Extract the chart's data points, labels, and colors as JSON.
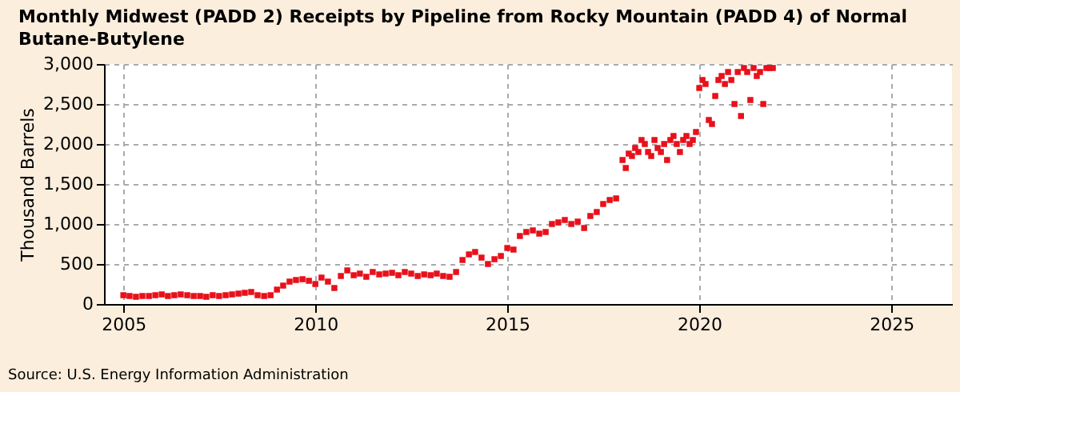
{
  "chart_data": {
    "type": "scatter",
    "title": "Monthly Midwest (PADD 2) Receipts by Pipeline from Rocky Mountain (PADD 4) of Normal Butane-Butylene",
    "ylabel": "Thousand Barrels",
    "annotations": [
      "Source: U.S. Energy Information Administration"
    ],
    "x": [
      "2005-01",
      "2005-03",
      "2005-05",
      "2005-07",
      "2005-09",
      "2005-11",
      "2006-01",
      "2006-03",
      "2006-05",
      "2006-07",
      "2006-09",
      "2006-11",
      "2007-01",
      "2007-03",
      "2007-05",
      "2007-07",
      "2007-09",
      "2007-11",
      "2008-01",
      "2008-03",
      "2008-05",
      "2008-07",
      "2008-09",
      "2008-11",
      "2009-01",
      "2009-03",
      "2009-05",
      "2009-07",
      "2009-09",
      "2009-11",
      "2010-01",
      "2010-03",
      "2010-05",
      "2010-07",
      "2010-09",
      "2010-11",
      "2011-01",
      "2011-03",
      "2011-05",
      "2011-07",
      "2011-09",
      "2011-11",
      "2012-01",
      "2012-03",
      "2012-05",
      "2012-07",
      "2012-09",
      "2012-11",
      "2013-01",
      "2013-03",
      "2013-05",
      "2013-07",
      "2013-09",
      "2013-11",
      "2014-01",
      "2014-03",
      "2014-05",
      "2014-07",
      "2014-09",
      "2014-11",
      "2015-01",
      "2015-03",
      "2015-05",
      "2015-07",
      "2015-09",
      "2015-11",
      "2016-01",
      "2016-03",
      "2016-05",
      "2016-07",
      "2016-09",
      "2016-11",
      "2017-01",
      "2017-03",
      "2017-05",
      "2017-07",
      "2017-09",
      "2017-11",
      "2018-01",
      "2018-02",
      "2018-03",
      "2018-04",
      "2018-05",
      "2018-06",
      "2018-07",
      "2018-08",
      "2018-09",
      "2018-10",
      "2018-11",
      "2018-12",
      "2019-01",
      "2019-02",
      "2019-03",
      "2019-04",
      "2019-05",
      "2019-06",
      "2019-07",
      "2019-08",
      "2019-09",
      "2019-10",
      "2019-11",
      "2019-12",
      "2020-01",
      "2020-02",
      "2020-03",
      "2020-04",
      "2020-05",
      "2020-06",
      "2020-07",
      "2020-08",
      "2020-09",
      "2020-10",
      "2020-11",
      "2020-12",
      "2021-01",
      "2021-02",
      "2021-03",
      "2021-04",
      "2021-05",
      "2021-06",
      "2021-07",
      "2021-08",
      "2021-09",
      "2021-10",
      "2021-11",
      "2021-12"
    ],
    "series": [
      {
        "color": "#e8101a",
        "values": [
          110,
          100,
          90,
          100,
          100,
          110,
          120,
          100,
          110,
          120,
          110,
          100,
          100,
          90,
          110,
          100,
          110,
          120,
          130,
          140,
          150,
          110,
          100,
          110,
          180,
          230,
          280,
          300,
          310,
          290,
          250,
          330,
          280,
          200,
          350,
          420,
          360,
          380,
          340,
          400,
          370,
          380,
          390,
          360,
          400,
          380,
          350,
          370,
          360,
          380,
          350,
          340,
          400,
          550,
          620,
          650,
          580,
          500,
          560,
          600,
          700,
          680,
          850,
          900,
          920,
          880,
          900,
          1000,
          1020,
          1050,
          1000,
          1030,
          950,
          1100,
          1150,
          1250,
          1300,
          1320,
          1800,
          1700,
          1880,
          1850,
          1950,
          1900,
          2050,
          2000,
          1900,
          1850,
          2050,
          1950,
          1900,
          2000,
          1800,
          2050,
          2100,
          2000,
          1900,
          2050,
          2100,
          2000,
          2050,
          2150,
          2700,
          2800,
          2750,
          2300,
          2250,
          2600,
          2800,
          2850,
          2750,
          2900,
          2800,
          2500,
          2900,
          2350,
          2950,
          2900,
          2550,
          2950,
          2850,
          2900,
          2500,
          2950,
          2950,
          2950
        ]
      }
    ],
    "xlim": [
      "2004-07",
      "2026-08"
    ],
    "xticks": [
      {
        "value": "2005-01",
        "label": "2005"
      },
      {
        "value": "2010-01",
        "label": "2010"
      },
      {
        "value": "2015-01",
        "label": "2015"
      },
      {
        "value": "2020-01",
        "label": "2020"
      },
      {
        "value": "2025-01",
        "label": "2025"
      }
    ],
    "ylim": [
      0,
      3000
    ],
    "yticks": [
      0,
      500,
      {
        "value": 1000,
        "label": "1,000"
      },
      {
        "value": 1500,
        "label": "1,500"
      },
      {
        "value": 2000,
        "label": "2,000"
      },
      {
        "value": 2500,
        "label": "2,500"
      },
      {
        "value": 3000,
        "label": "3,000"
      }
    ],
    "grid": true,
    "marker": "square",
    "legend": false
  }
}
